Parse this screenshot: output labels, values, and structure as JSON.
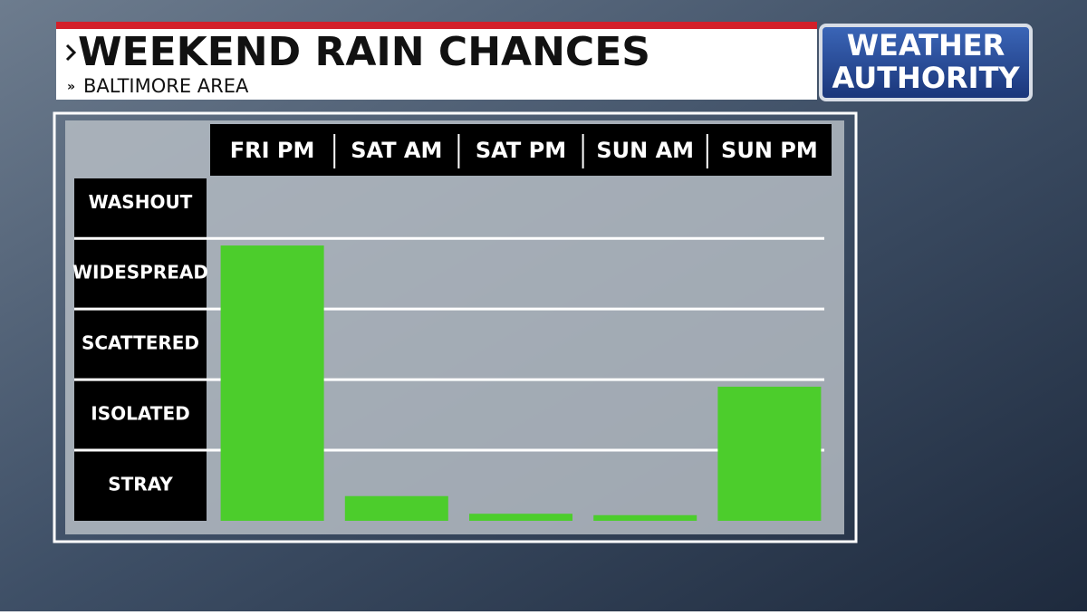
{
  "chart_data": {
    "type": "bar",
    "title": "WEEKEND RAIN CHANCES",
    "subtitle": "BALTIMORE AREA",
    "categories": [
      "FRI PM",
      "SAT AM",
      "SAT PM",
      "SUN AM",
      "SUN PM"
    ],
    "values": [
      3.9,
      0.35,
      0.1,
      0.08,
      1.9
    ],
    "color": "#4ccd2c",
    "ylim": [
      0,
      4.85
    ],
    "yticks": [
      {
        "value": 0.5,
        "label": "STRAY"
      },
      {
        "value": 1.5,
        "label": "ISOLATED"
      },
      {
        "value": 2.5,
        "label": "SCATTERED"
      },
      {
        "value": 3.5,
        "label": "WIDESPREAD"
      },
      {
        "value": 4.5,
        "label": "WASHOUT"
      }
    ],
    "grid": true
  },
  "branding": {
    "line1": "WEATHER",
    "line2": "AUTHORITY"
  }
}
